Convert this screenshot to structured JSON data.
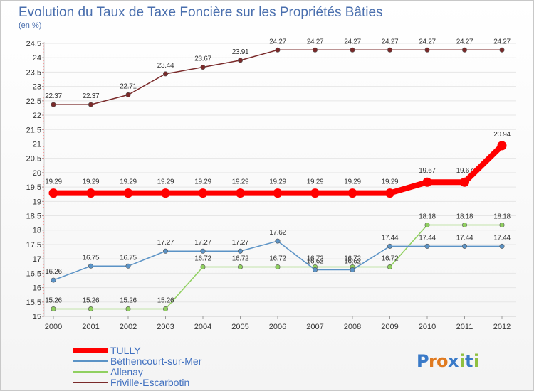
{
  "chart_data": {
    "type": "line",
    "title": "Evolution du Taux de Taxe Foncière sur les Propriétés Bâties",
    "subtitle": "(en %)",
    "xlabel": "",
    "ylabel": "",
    "x": [
      "2000",
      "2001",
      "2002",
      "2003",
      "2004",
      "2005",
      "2006",
      "2007",
      "2008",
      "2009",
      "2010",
      "2011",
      "2012"
    ],
    "ylim": [
      15,
      24.5
    ],
    "yticks": [
      "15",
      "15.5",
      "16",
      "16.5",
      "17",
      "17.5",
      "18",
      "18.5",
      "19",
      "19.5",
      "20",
      "20.5",
      "21",
      "21.5",
      "22",
      "22.5",
      "23",
      "23.5",
      "24",
      "24.5"
    ],
    "series": [
      {
        "name": "TULLY",
        "color": "#ff0000",
        "values": [
          19.29,
          19.29,
          19.29,
          19.29,
          19.29,
          19.29,
          19.29,
          19.29,
          19.29,
          19.29,
          19.67,
          19.67,
          20.94
        ],
        "labels": [
          "19.29",
          "19.29",
          "19.29",
          "19.29",
          "19.29",
          "19.29",
          "19.29",
          "19.29",
          "19.29",
          "19.29",
          "19.67",
          "19.67",
          "20.94"
        ]
      },
      {
        "name": "Béthencourt-sur-Mer",
        "color": "#5b93c6",
        "values": [
          16.26,
          16.75,
          16.75,
          17.27,
          17.27,
          17.27,
          17.62,
          16.62,
          16.62,
          17.44,
          17.44,
          17.44,
          17.44
        ],
        "labels": [
          "16.26",
          "16.75",
          "16.75",
          "17.27",
          "17.27",
          "17.27",
          "17.62",
          "16.62",
          "16.62",
          "17.44",
          "17.44",
          "17.44",
          "17.44"
        ]
      },
      {
        "name": "Allenay",
        "color": "#90d060",
        "values": [
          15.26,
          15.26,
          15.26,
          15.26,
          16.72,
          16.72,
          16.72,
          16.72,
          16.72,
          16.72,
          18.18,
          18.18,
          18.18
        ],
        "labels": [
          "15.26",
          "15.26",
          "15.26",
          "15.26",
          "16.72",
          "16.72",
          "16.72",
          "16.72",
          "16.72",
          "16.72",
          "18.18",
          "18.18",
          "18.18"
        ]
      },
      {
        "name": "Friville-Escarbotin",
        "color": "#7a2a2a",
        "values": [
          22.37,
          22.37,
          22.71,
          23.44,
          23.67,
          23.91,
          24.27,
          24.27,
          24.27,
          24.27,
          24.27,
          24.27,
          24.27
        ],
        "labels": [
          "22.37",
          "22.37",
          "22.71",
          "23.44",
          "23.67",
          "23.91",
          "24.27",
          "24.27",
          "24.27",
          "24.27",
          "24.27",
          "24.27",
          "24.27"
        ]
      }
    ],
    "legend_position": "bottom-left"
  },
  "logo": {
    "text": "Proxiti",
    "letters": [
      "P",
      "r",
      "o",
      "x",
      "i",
      "t",
      "i"
    ]
  }
}
